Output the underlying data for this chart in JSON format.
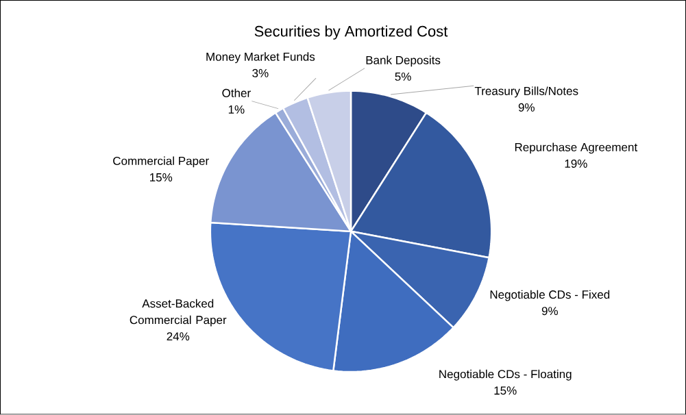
{
  "chart_data": {
    "type": "pie",
    "title": "Securities by Amortized Cost",
    "categories": [
      "Treasury Bills/Notes",
      "Repurchase Agreement",
      "Negotiable CDs - Fixed",
      "Negotiable CDs - Floating",
      "Asset-Backed Commercial Paper",
      "Commercial Paper",
      "Other",
      "Money Market Funds",
      "Bank Deposits"
    ],
    "values": [
      9,
      19,
      9,
      15,
      24,
      15,
      1,
      3,
      5
    ],
    "value_labels": [
      "9%",
      "19%",
      "9%",
      "15%",
      "24%",
      "15%",
      "1%",
      "3%",
      "5%"
    ],
    "colors": [
      "#2e4b89",
      "#33599f",
      "#3a64b0",
      "#3f6dbf",
      "#4674c6",
      "#7a94d0",
      "#9aacd9",
      "#b2bee2",
      "#c8cfe8"
    ],
    "legend": false
  }
}
